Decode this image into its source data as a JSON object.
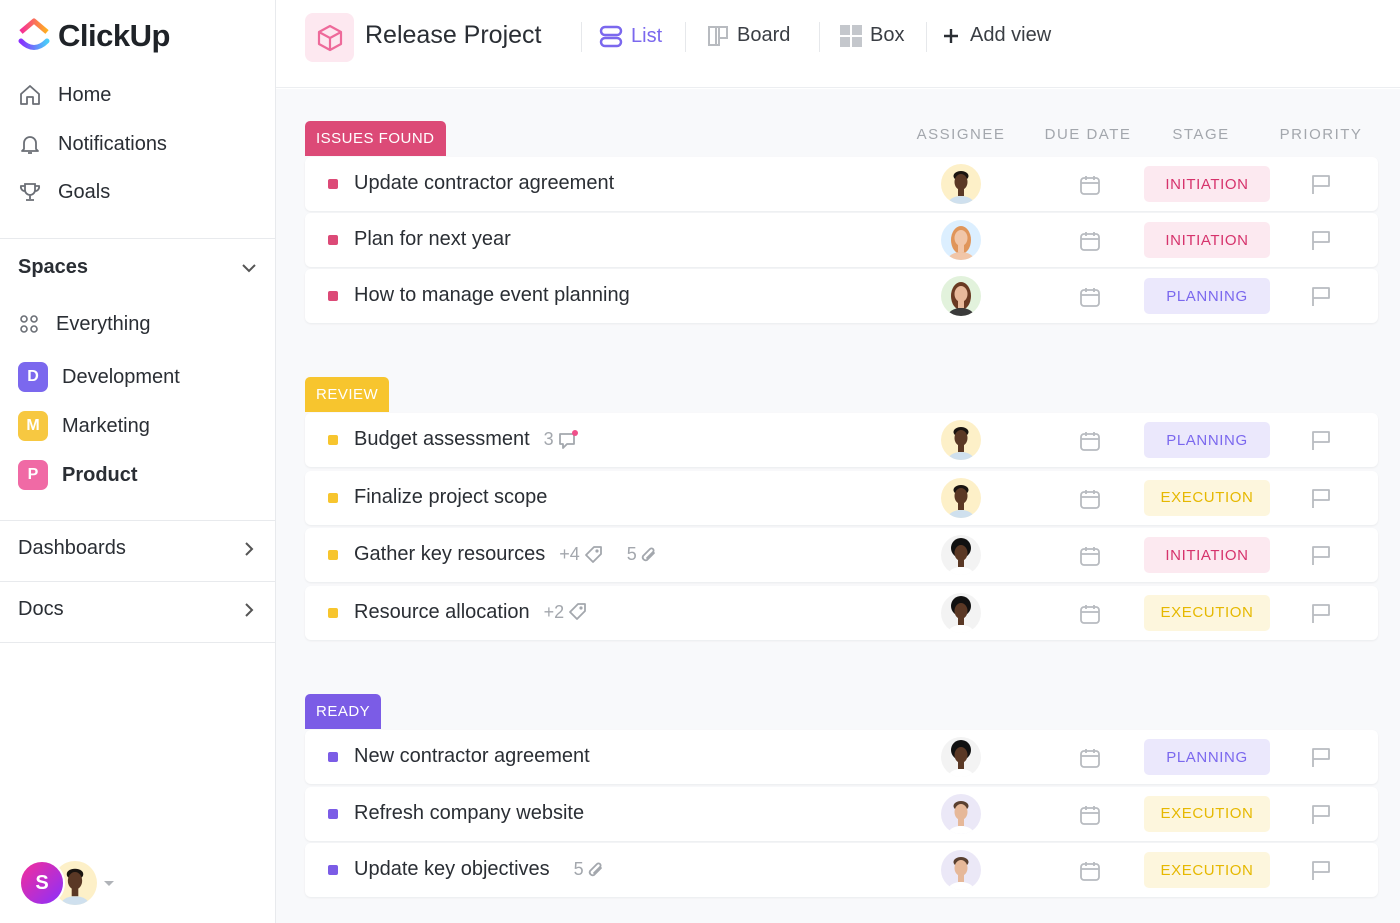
{
  "brand": {
    "name": "ClickUp"
  },
  "sidebar": {
    "nav": [
      {
        "label": "Home",
        "icon": "home-icon"
      },
      {
        "label": "Notifications",
        "icon": "bell-icon"
      },
      {
        "label": "Goals",
        "icon": "trophy-icon"
      }
    ],
    "spaces_label": "Spaces",
    "everything_label": "Everything",
    "spaces": [
      {
        "letter": "D",
        "label": "Development",
        "color": "#7b68ee"
      },
      {
        "letter": "M",
        "label": "Marketing",
        "color": "#f7c841"
      },
      {
        "letter": "P",
        "label": "Product",
        "color": "#f06aa5"
      }
    ],
    "dashboards_label": "Dashboards",
    "docs_label": "Docs",
    "user_initial": "S"
  },
  "header": {
    "title": "Release Project",
    "views": [
      {
        "label": "List",
        "active": true
      },
      {
        "label": "Board"
      },
      {
        "label": "Box"
      }
    ],
    "add_view": "Add view"
  },
  "columns": [
    "ASSIGNEE",
    "DUE DATE",
    "STAGE",
    "PRIORITY"
  ],
  "stage_colors": {
    "INITIATION": {
      "fg": "#d6336c",
      "bg": "#fce9f0"
    },
    "PLANNING": {
      "fg": "#7b68ee",
      "bg": "#ebe8fc"
    },
    "EXECUTION": {
      "fg": "#e6b800",
      "bg": "#fdf6dd"
    }
  },
  "groups": [
    {
      "label": "ISSUES FOUND",
      "color": "#dc4a77",
      "tasks": [
        {
          "name": "Update contractor agreement",
          "assignee": "man-dark",
          "stage": "INITIATION"
        },
        {
          "name": "Plan for next year",
          "assignee": "woman-blonde",
          "stage": "INITIATION"
        },
        {
          "name": "How to manage event planning",
          "assignee": "woman-brunette",
          "stage": "PLANNING"
        }
      ]
    },
    {
      "label": "REVIEW",
      "color": "#f7c52e",
      "tasks": [
        {
          "name": "Budget assessment",
          "comments": "3",
          "assignee": "man-dark",
          "stage": "PLANNING"
        },
        {
          "name": "Finalize project scope",
          "assignee": "man-dark",
          "stage": "EXECUTION"
        },
        {
          "name": "Gather key resources",
          "tags": "+4",
          "attachments": "5",
          "assignee": "man-curly",
          "stage": "INITIATION"
        },
        {
          "name": "Resource allocation",
          "tags": "+2",
          "assignee": "man-curly",
          "stage": "EXECUTION"
        }
      ]
    },
    {
      "label": "READY",
      "color": "#7b5ce6",
      "tasks": [
        {
          "name": "New contractor agreement",
          "assignee": "man-curly",
          "stage": "PLANNING"
        },
        {
          "name": "Refresh company website",
          "assignee": "man-light",
          "stage": "EXECUTION"
        },
        {
          "name": "Update key objectives",
          "attachments": "5",
          "assignee": "man-light",
          "stage": "EXECUTION"
        }
      ]
    }
  ]
}
